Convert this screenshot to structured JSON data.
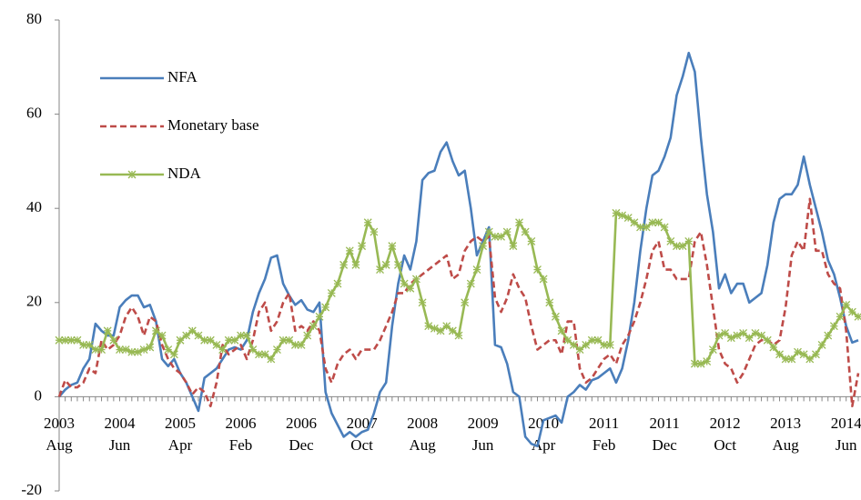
{
  "chart_data": {
    "type": "line",
    "categories": [
      [
        "2003",
        "Aug"
      ],
      null,
      null,
      null,
      null,
      null,
      null,
      null,
      null,
      null,
      [
        "2004",
        "Jun"
      ],
      null,
      null,
      null,
      null,
      null,
      null,
      null,
      null,
      null,
      [
        "2005",
        "Apr"
      ],
      null,
      null,
      null,
      null,
      null,
      null,
      null,
      null,
      null,
      [
        "2006",
        "Feb"
      ],
      null,
      null,
      null,
      null,
      null,
      null,
      null,
      null,
      null,
      [
        "2006",
        "Dec"
      ],
      null,
      null,
      null,
      null,
      null,
      null,
      null,
      null,
      null,
      [
        "2007",
        "Oct"
      ],
      null,
      null,
      null,
      null,
      null,
      null,
      null,
      null,
      null,
      [
        "2008",
        "Aug"
      ],
      null,
      null,
      null,
      null,
      null,
      null,
      null,
      null,
      null,
      [
        "2009",
        "Jun"
      ],
      null,
      null,
      null,
      null,
      null,
      null,
      null,
      null,
      null,
      [
        "2010",
        "Apr"
      ],
      null,
      null,
      null,
      null,
      null,
      null,
      null,
      null,
      null,
      [
        "2011",
        "Feb"
      ],
      null,
      null,
      null,
      null,
      null,
      null,
      null,
      null,
      null,
      [
        "2011",
        "Dec"
      ],
      null,
      null,
      null,
      null,
      null,
      null,
      null,
      null,
      null,
      [
        "2012",
        "Oct"
      ],
      null,
      null,
      null,
      null,
      null,
      null,
      null,
      null,
      null,
      [
        "2013",
        "Aug"
      ],
      null,
      null,
      null,
      null,
      null,
      null,
      null,
      null,
      null,
      [
        "2014",
        "Jun"
      ],
      null,
      null
    ],
    "series": [
      {
        "name": "NFA",
        "color": "#4a7ebb",
        "linestyle": "solid",
        "marker": "none",
        "values": [
          0,
          1.5,
          2.5,
          3,
          6,
          8,
          15.5,
          14,
          13,
          13,
          19,
          20.5,
          21.5,
          21.5,
          19,
          19.5,
          16,
          8,
          6.5,
          8,
          5,
          3,
          0,
          -3,
          4,
          5,
          6,
          8,
          10,
          10.5,
          10,
          12,
          18,
          22,
          25,
          29.5,
          30,
          24,
          21.5,
          19.5,
          20.5,
          18.5,
          18,
          20,
          1,
          -3.5,
          -6,
          -8.5,
          -7.5,
          -8.5,
          -7.5,
          -7,
          -3.5,
          1,
          3,
          15,
          24,
          30,
          27,
          33,
          46,
          47.5,
          48,
          52,
          54,
          50,
          47,
          48,
          40,
          30,
          33,
          36,
          11,
          10.5,
          7,
          1,
          0,
          -8.5,
          -10,
          -10.5,
          -5,
          -4.5,
          -4,
          -5.5,
          0,
          1,
          2.5,
          1.5,
          3.5,
          4,
          5,
          6,
          3,
          6,
          12,
          20,
          31,
          40,
          47,
          48,
          51,
          55,
          64,
          68,
          73,
          69,
          55,
          43,
          35,
          23,
          26,
          22,
          24,
          24,
          20,
          21,
          22,
          28,
          37,
          42,
          43,
          43,
          45,
          51,
          45,
          40,
          35,
          29,
          26,
          21,
          15,
          11.5,
          12
        ]
      },
      {
        "name": "Monetary base",
        "color": "#be4b48",
        "linestyle": "dashed",
        "marker": "none",
        "values": [
          0,
          3.5,
          2,
          2,
          3,
          6,
          5,
          12,
          10,
          11,
          13,
          17,
          19,
          17,
          13,
          17,
          16,
          11,
          8,
          6,
          5,
          3,
          0.5,
          2,
          1,
          -2,
          3,
          11,
          9,
          10,
          11,
          8,
          12,
          18,
          20,
          14,
          16,
          20,
          22,
          14,
          15,
          14,
          16,
          14,
          6,
          3,
          7,
          9,
          10,
          8,
          10,
          10,
          10,
          12,
          15,
          18,
          22,
          22,
          24,
          25,
          26,
          27,
          28,
          29,
          30,
          25,
          26,
          31,
          33,
          34,
          33,
          34,
          21,
          18,
          21,
          26,
          23,
          21,
          15,
          10,
          11,
          12,
          12,
          9,
          16,
          16,
          6,
          3,
          4,
          6,
          8,
          9,
          7,
          11,
          13,
          16,
          20,
          25,
          31,
          33,
          27,
          27,
          25,
          25,
          25,
          33,
          35,
          28,
          19,
          10,
          7,
          6,
          3,
          5,
          8,
          11,
          12,
          12,
          11,
          12,
          19,
          30,
          33,
          31,
          42,
          31,
          31,
          26,
          24,
          23,
          14,
          -2,
          5
        ]
      },
      {
        "name": "NDA",
        "color": "#98b954",
        "linestyle": "solid",
        "marker": "star",
        "values": [
          12,
          12,
          12,
          12,
          11,
          11,
          10,
          10,
          14,
          12,
          10,
          10,
          9.5,
          9.5,
          10,
          10.5,
          14,
          13,
          10,
          9,
          12,
          13,
          14,
          13,
          12,
          12,
          11,
          10,
          12,
          12,
          13,
          13,
          10,
          9,
          9,
          8,
          10,
          12,
          12,
          11,
          11,
          13,
          15,
          17,
          19,
          22,
          24,
          28,
          31,
          28,
          32,
          37,
          35,
          27,
          28,
          32,
          28,
          24,
          23,
          25,
          20,
          15,
          14.5,
          14,
          15,
          14,
          13,
          20,
          24,
          27,
          32,
          35,
          34,
          34,
          35,
          32,
          37,
          35,
          33,
          27,
          25,
          20,
          17,
          14,
          12,
          11,
          10,
          11,
          12,
          12,
          11,
          11,
          39,
          38.5,
          38,
          37,
          36,
          36,
          37,
          37,
          36,
          33,
          32,
          32,
          33,
          7,
          7,
          7.5,
          10,
          13,
          13.5,
          12.5,
          13,
          13.5,
          12.5,
          13.5,
          13,
          12,
          10.5,
          9,
          8,
          8,
          9.5,
          9,
          8,
          9,
          11,
          13,
          15,
          17,
          19.5,
          18,
          17
        ]
      }
    ],
    "ylim": [
      -20,
      80
    ],
    "yticks": [
      -20,
      0,
      20,
      40,
      60,
      80
    ],
    "grid": false,
    "legend": "upper left"
  }
}
